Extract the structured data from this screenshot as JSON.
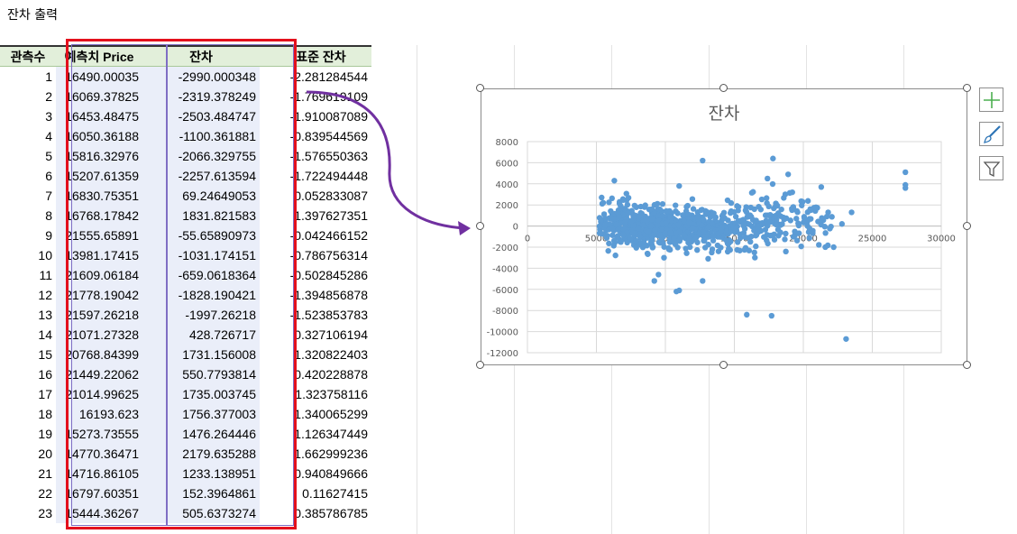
{
  "sheet": {
    "title": "잔차 출력",
    "headers": {
      "obs": "관측수",
      "pred": "예측치 Price",
      "res": "잔차",
      "std": "표준 잔차"
    },
    "rows": [
      {
        "obs": "1",
        "pred": "16490.00035",
        "res": "-2990.000348",
        "std": "-2.281284544"
      },
      {
        "obs": "2",
        "pred": "16069.37825",
        "res": "-2319.378249",
        "std": "-1.769619109"
      },
      {
        "obs": "3",
        "pred": "16453.48475",
        "res": "-2503.484747",
        "std": "-1.910087089"
      },
      {
        "obs": "4",
        "pred": "16050.36188",
        "res": "-1100.361881",
        "std": "-0.839544569"
      },
      {
        "obs": "5",
        "pred": "15816.32976",
        "res": "-2066.329755",
        "std": "-1.576550363"
      },
      {
        "obs": "6",
        "pred": "15207.61359",
        "res": "-2257.613594",
        "std": "-1.722494448"
      },
      {
        "obs": "7",
        "pred": "16830.75351",
        "res": "69.24649053",
        "std": "0.052833087"
      },
      {
        "obs": "8",
        "pred": "16768.17842",
        "res": "1831.821583",
        "std": "1.397627351"
      },
      {
        "obs": "9",
        "pred": "21555.65891",
        "res": "-55.65890973",
        "std": "-0.042466152"
      },
      {
        "obs": "10",
        "pred": "13981.17415",
        "res": "-1031.174151",
        "std": "-0.786756314"
      },
      {
        "obs": "11",
        "pred": "21609.06184",
        "res": "-659.0618364",
        "std": "-0.502845286"
      },
      {
        "obs": "12",
        "pred": "21778.19042",
        "res": "-1828.190421",
        "std": "-1.394856878"
      },
      {
        "obs": "13",
        "pred": "21597.26218",
        "res": "-1997.26218",
        "std": "-1.523853783"
      },
      {
        "obs": "14",
        "pred": "21071.27328",
        "res": "428.726717",
        "std": "0.327106194"
      },
      {
        "obs": "15",
        "pred": "20768.84399",
        "res": "1731.156008",
        "std": "1.320822403"
      },
      {
        "obs": "16",
        "pred": "21449.22062",
        "res": "550.7793814",
        "std": "0.420228878"
      },
      {
        "obs": "17",
        "pred": "21014.99625",
        "res": "1735.003745",
        "std": "1.323758116"
      },
      {
        "obs": "18",
        "pred": "16193.623",
        "res": "1756.377003",
        "std": "1.340065299"
      },
      {
        "obs": "19",
        "pred": "15273.73555",
        "res": "1476.264446",
        "std": "1.126347449"
      },
      {
        "obs": "20",
        "pred": "14770.36471",
        "res": "2179.635288",
        "std": "1.662999236"
      },
      {
        "obs": "21",
        "pred": "14716.86105",
        "res": "1233.138951",
        "std": "0.940849666"
      },
      {
        "obs": "22",
        "pred": "16797.60351",
        "res": "152.3964861",
        "std": "0.11627415"
      },
      {
        "obs": "23",
        "pred": "15444.36267",
        "res": "505.6373274",
        "std": "0.385786785"
      }
    ]
  },
  "chart_data": {
    "type": "scatter",
    "title": "잔차",
    "xlim": [
      0,
      30000
    ],
    "ylim": [
      -12000,
      8000
    ],
    "xticks": [
      "0",
      "5000",
      "10000",
      "15000",
      "20000",
      "25000",
      "30000"
    ],
    "yticks": [
      "8000",
      "6000",
      "4000",
      "2000",
      "0",
      "-2000",
      "-4000",
      "-6000",
      "-8000",
      "-10000",
      "-12000"
    ],
    "grid": true,
    "point_color": "#5b9bd5",
    "points": [
      [
        16490,
        -2990
      ],
      [
        16069,
        -2319
      ],
      [
        16453,
        -2503
      ],
      [
        16050,
        -1100
      ],
      [
        15816,
        -2066
      ],
      [
        15208,
        -2258
      ],
      [
        16831,
        69
      ],
      [
        16768,
        1832
      ],
      [
        21556,
        -56
      ],
      [
        13981,
        -1031
      ],
      [
        21609,
        -659
      ],
      [
        21778,
        -1828
      ],
      [
        21597,
        -1997
      ],
      [
        21071,
        429
      ],
      [
        20769,
        1731
      ],
      [
        21449,
        551
      ],
      [
        21015,
        1735
      ],
      [
        16194,
        1756
      ],
      [
        15274,
        1476
      ],
      [
        14770,
        2180
      ],
      [
        14717,
        1233
      ],
      [
        16798,
        152
      ],
      [
        15444,
        506
      ],
      [
        27400,
        5100
      ],
      [
        27400,
        3900
      ],
      [
        27400,
        3600
      ],
      [
        12700,
        6200
      ],
      [
        17800,
        6400
      ],
      [
        18900,
        4900
      ],
      [
        17400,
        4500
      ],
      [
        21300,
        3700
      ],
      [
        23100,
        -10700
      ],
      [
        17700,
        -8500
      ],
      [
        15900,
        -8400
      ],
      [
        11000,
        -6100
      ],
      [
        10800,
        -6200
      ],
      [
        9500,
        -4600
      ],
      [
        9200,
        -5200
      ],
      [
        12700,
        -5200
      ],
      [
        6300,
        4300
      ],
      [
        11000,
        3800
      ],
      [
        19200,
        3200
      ],
      [
        20500,
        1600
      ],
      [
        21800,
        1300
      ],
      [
        23500,
        1300
      ],
      [
        22800,
        200
      ],
      [
        22200,
        -2000
      ],
      [
        13100,
        -3100
      ],
      [
        8700,
        -2600
      ],
      [
        9900,
        -3000
      ]
    ]
  },
  "toolbar": {
    "icons": [
      "plus-icon",
      "brush-icon",
      "filter-icon"
    ]
  }
}
